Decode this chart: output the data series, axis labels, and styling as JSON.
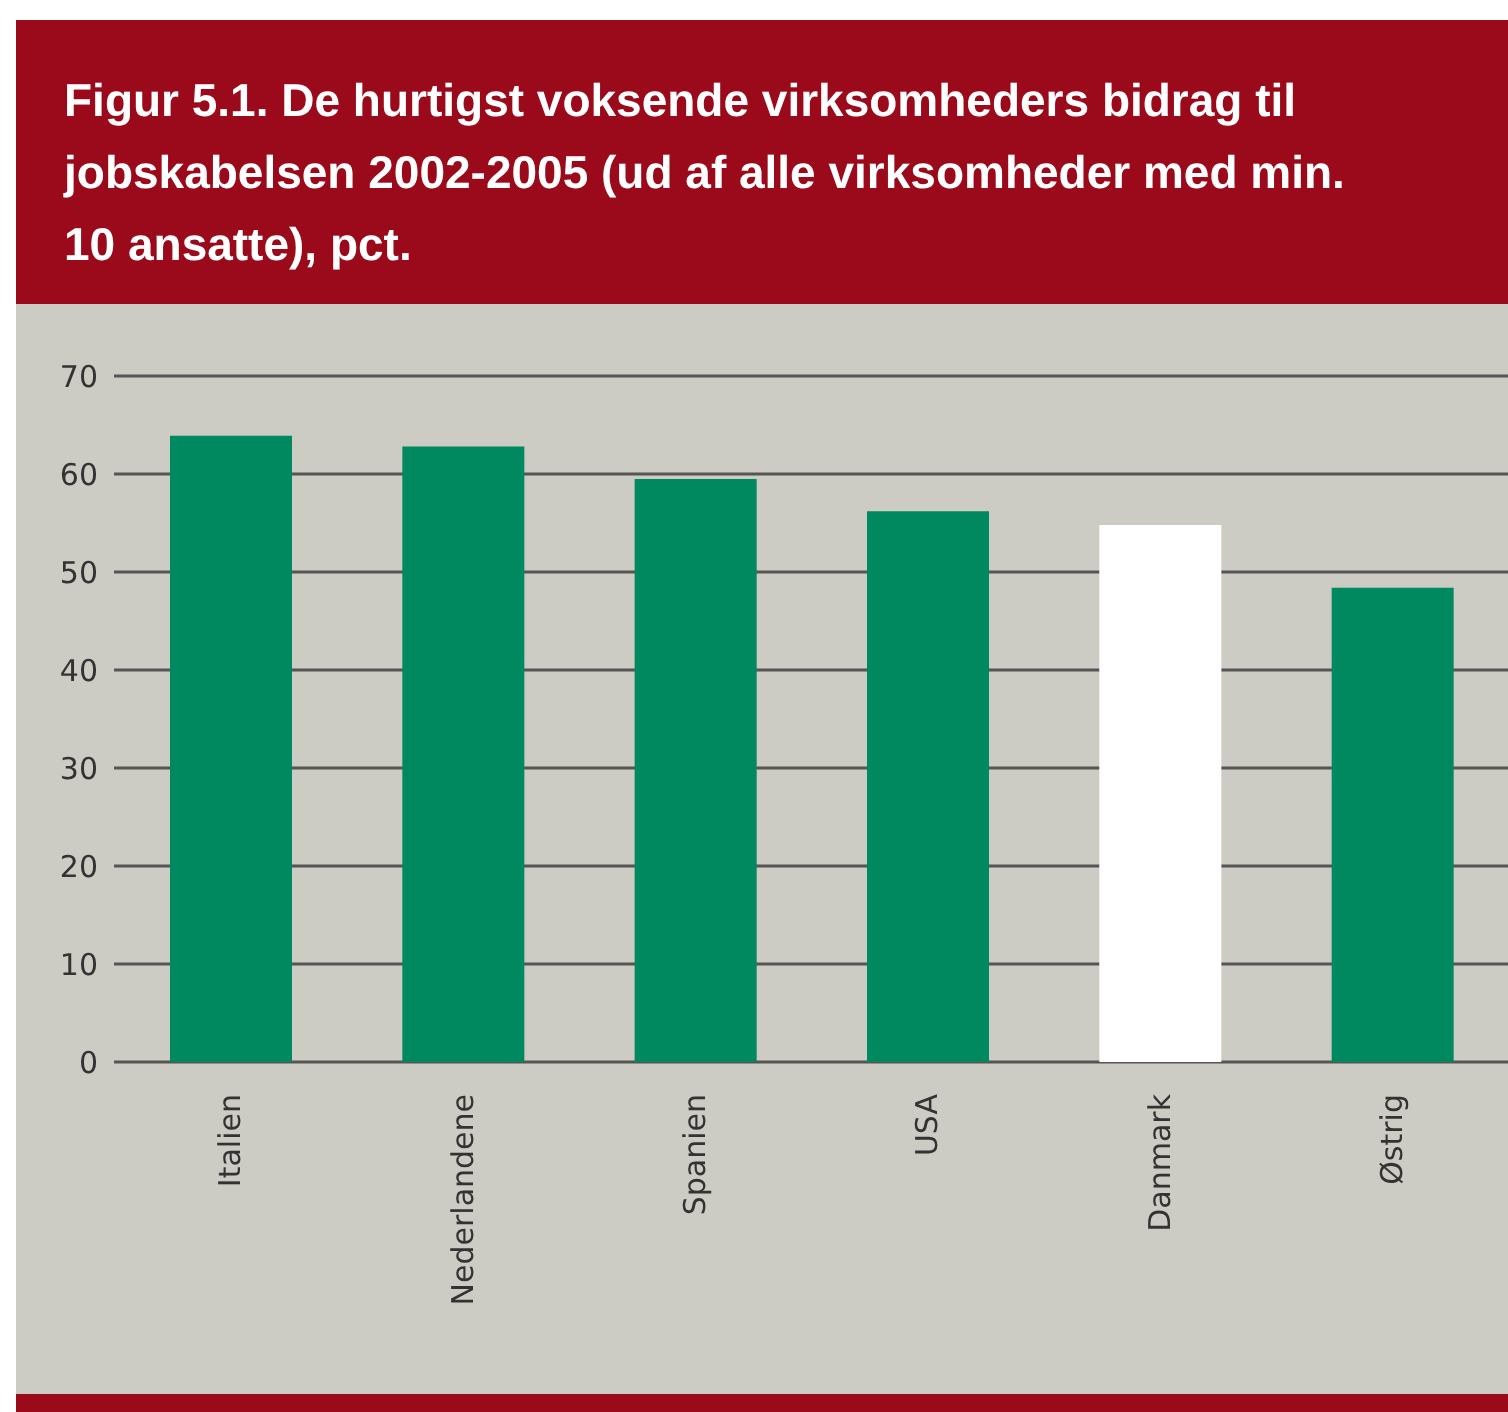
{
  "chart_data": {
    "type": "bar",
    "title": "Figur 5.1. De hurtigst voksende virksomheders bidrag til jobskabelsen 2002-2005 (ud af alle virksomheder med min. 10 ansatte), pct.",
    "categories": [
      "Italien",
      "Nederlandene",
      "Spanien",
      "USA",
      "Danmark",
      "Østrig"
    ],
    "values": [
      63.9,
      62.8,
      59.5,
      56.2,
      54.8,
      48.4
    ],
    "colors": [
      "#00885e",
      "#00885e",
      "#00885e",
      "#00885e",
      "#ffffff",
      "#00885e"
    ],
    "ylim": [
      0,
      70
    ],
    "yticks": [
      0,
      10,
      20,
      30,
      40,
      50,
      60,
      70
    ],
    "grid": "y"
  }
}
